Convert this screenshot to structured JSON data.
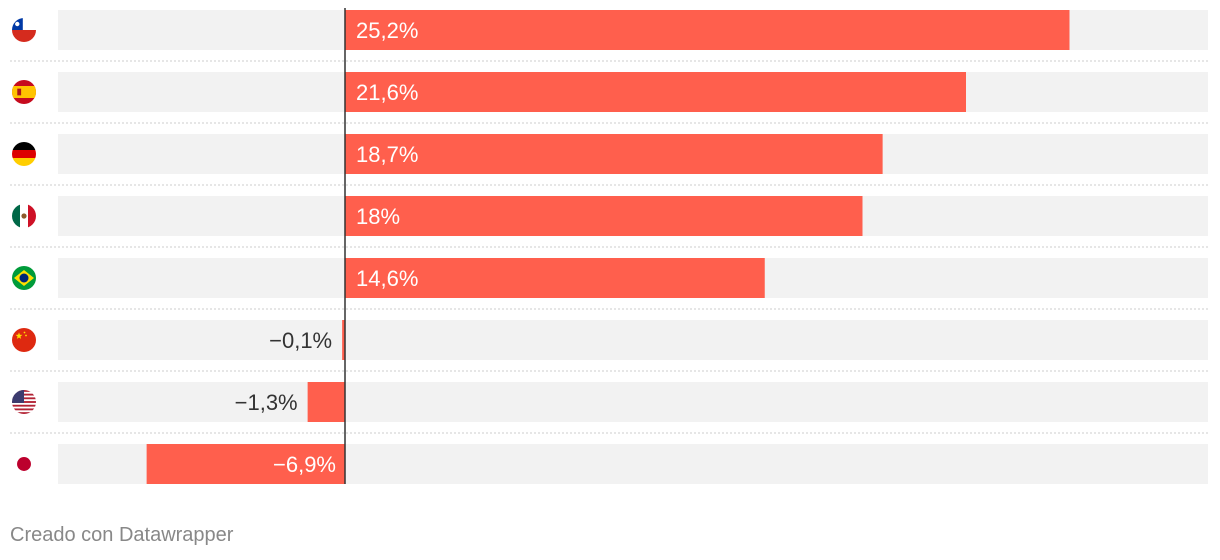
{
  "chart_data": {
    "type": "bar",
    "orientation": "horizontal",
    "rows": [
      {
        "flag": "chile-flag-icon",
        "value": 25.2,
        "label": "25,2%"
      },
      {
        "flag": "spain-flag-icon",
        "value": 21.6,
        "label": "21,6%"
      },
      {
        "flag": "germany-flag-icon",
        "value": 18.7,
        "label": "18,7%"
      },
      {
        "flag": "mexico-flag-icon",
        "value": 18.0,
        "label": "18%"
      },
      {
        "flag": "brazil-flag-icon",
        "value": 14.6,
        "label": "14,6%"
      },
      {
        "flag": "china-flag-icon",
        "value": -0.1,
        "label": "−0,1%"
      },
      {
        "flag": "usa-flag-icon",
        "value": -1.3,
        "label": "−1,3%"
      },
      {
        "flag": "japan-flag-icon",
        "value": -6.9,
        "label": "−6,9%"
      }
    ],
    "xlim": [
      -10,
      30
    ],
    "grid": false,
    "colors": {
      "bar": "#ff5f4d",
      "track": "#f2f2f2",
      "zero_line": "#333333",
      "separator": "#cccccc",
      "label_inside": "#ffffff",
      "label_outside": "#333333"
    }
  },
  "footer": {
    "credit": "Creado con Datawrapper"
  }
}
